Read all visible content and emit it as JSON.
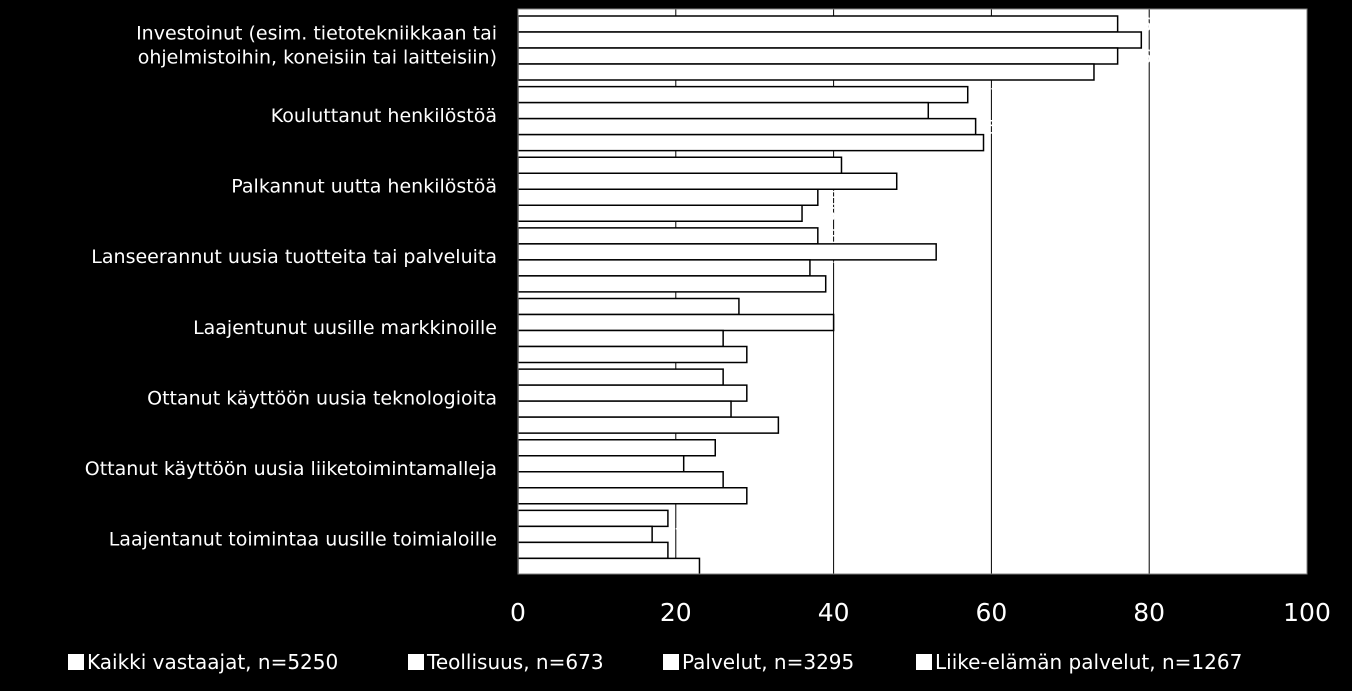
{
  "chart_data": {
    "type": "bar",
    "orientation": "horizontal",
    "categories": [
      [
        "Investoinut  (esim. tietotekniikkaan tai",
        "ohjelmistoihin, koneisiin tai laitteisiin)"
      ],
      [
        "Kouluttanut henkilöstöä"
      ],
      [
        "Palkannut uutta henkilöstöä"
      ],
      [
        "Lanseerannut uusia tuotteita tai palveluita"
      ],
      [
        "Laajentunut uusille markkinoille"
      ],
      [
        "Ottanut käyttöön uusia teknologioita"
      ],
      [
        "Ottanut käyttöön uusia liiketoimintamalleja"
      ],
      [
        "Laajentanut toimintaa uusille toimialoille"
      ]
    ],
    "series": [
      {
        "name": "Kaikki vastaajat, n=5250",
        "values": [
          76,
          57,
          41,
          38,
          28,
          26,
          25,
          19
        ]
      },
      {
        "name": "Teollisuus, n=673",
        "values": [
          79,
          52,
          48,
          53,
          40,
          29,
          21,
          17
        ]
      },
      {
        "name": "Palvelut, n=3295",
        "values": [
          76,
          58,
          38,
          37,
          26,
          27,
          26,
          19
        ]
      },
      {
        "name": "Liike-elämän palvelut, n=1267",
        "values": [
          73,
          59,
          36,
          39,
          29,
          33,
          29,
          23
        ]
      }
    ],
    "xlim": [
      0,
      100
    ],
    "xticks": [
      "0",
      "20",
      "40",
      "60",
      "80",
      "100"
    ],
    "grid": true,
    "legend": "bottom",
    "colors": {
      "background": "#000000",
      "plot_background": "#ffffff",
      "bar": "#ffffff",
      "bar_edge": "#000000",
      "text": "#ffffff",
      "grid": "#000000"
    }
  }
}
